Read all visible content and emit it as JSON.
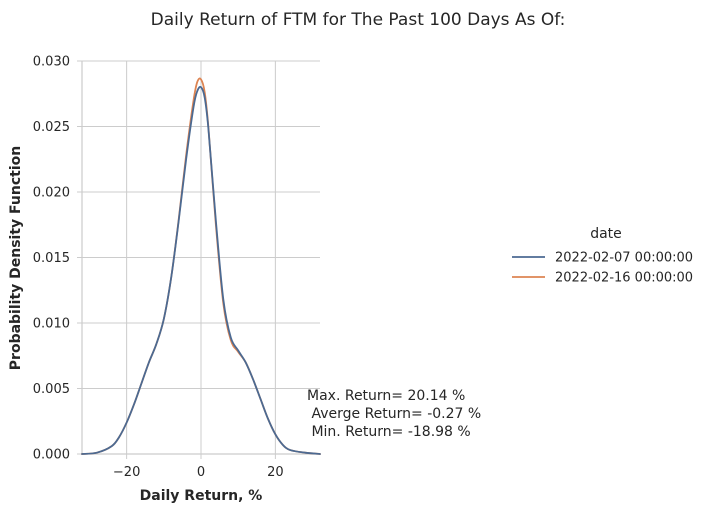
{
  "chart_data": {
    "type": "line",
    "title": "Daily Return of FTM for The Past 100 Days As Of:",
    "xlabel": "Daily Return, %",
    "ylabel": "Probability Density Function",
    "xlim": [
      -32,
      32
    ],
    "ylim": [
      0,
      0.03
    ],
    "x_ticks": [
      -20,
      0,
      20
    ],
    "x_tick_labels": [
      "−20",
      "0",
      "20"
    ],
    "y_ticks": [
      0,
      0.005,
      0.01,
      0.015,
      0.02,
      0.025,
      0.03
    ],
    "y_tick_labels": [
      "0.000",
      "0.005",
      "0.010",
      "0.015",
      "0.020",
      "0.025",
      "0.030"
    ],
    "grid": true,
    "legend": {
      "title": "date",
      "placement": "right"
    },
    "series": [
      {
        "name": "2022-02-07 00:00:00",
        "color": "#4c6a92",
        "x": [
          -32,
          -28,
          -24,
          -22,
          -20,
          -18,
          -16,
          -14,
          -12,
          -10,
          -8,
          -6,
          -4,
          -2,
          -1,
          0,
          1,
          2,
          4,
          6,
          8,
          10,
          12,
          14,
          16,
          18,
          20,
          22,
          24,
          28,
          32
        ],
        "y": [
          0,
          0.0001,
          0.0006,
          0.0013,
          0.0024,
          0.0038,
          0.0054,
          0.007,
          0.0084,
          0.0103,
          0.0135,
          0.0178,
          0.0225,
          0.0265,
          0.0277,
          0.028,
          0.0272,
          0.0248,
          0.0178,
          0.0118,
          0.0089,
          0.0079,
          0.007,
          0.0057,
          0.0042,
          0.0027,
          0.0015,
          0.0007,
          0.0003,
          0.0001,
          0
        ]
      },
      {
        "name": "2022-02-16 00:00:00",
        "color": "#dd8452",
        "x": [
          -32,
          -28,
          -24,
          -22,
          -20,
          -18,
          -16,
          -14,
          -12,
          -10,
          -8,
          -6,
          -4,
          -2,
          -1,
          0,
          1,
          2,
          4,
          6,
          8,
          10,
          12,
          14,
          16,
          18,
          20,
          22,
          24,
          28,
          32
        ],
        "y": [
          0,
          0.0001,
          0.0006,
          0.0013,
          0.0024,
          0.0038,
          0.0054,
          0.007,
          0.0084,
          0.0103,
          0.0135,
          0.0179,
          0.0228,
          0.027,
          0.0284,
          0.0286,
          0.0276,
          0.0249,
          0.0175,
          0.0115,
          0.0087,
          0.0078,
          0.007,
          0.0057,
          0.0042,
          0.0027,
          0.0015,
          0.0007,
          0.0003,
          0.0001,
          0
        ]
      }
    ],
    "annotation": [
      "Max. Return= 20.14 %",
      " Averge Return= -0.27 %",
      " Min. Return= -18.98 %"
    ]
  }
}
